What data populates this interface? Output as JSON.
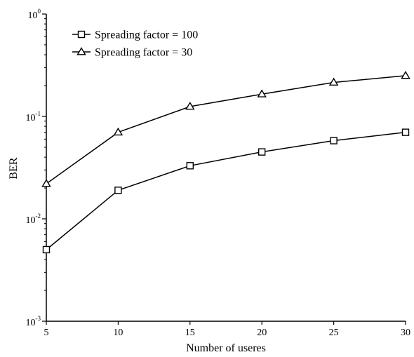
{
  "chart_data": {
    "type": "line",
    "xlabel": "Number of useres",
    "ylabel": "BER",
    "x": [
      5,
      10,
      15,
      20,
      25,
      30
    ],
    "xlim": [
      5,
      30
    ],
    "ylim": [
      0.001,
      1
    ],
    "yscale": "log",
    "grid": false,
    "legend_position": "top-left",
    "x_ticks": [
      "5",
      "10",
      "15",
      "20",
      "25",
      "30"
    ],
    "y_ticks": [
      {
        "base": "10",
        "exp": "0",
        "value": 1
      },
      {
        "base": "10",
        "exp": "-1",
        "value": 0.1
      },
      {
        "base": "10",
        "exp": "-2",
        "value": 0.01
      },
      {
        "base": "10",
        "exp": "-3",
        "value": 0.001
      }
    ],
    "series": [
      {
        "name": "Spreading factor = 100",
        "marker": "square",
        "values": [
          0.005,
          0.019,
          0.033,
          0.045,
          0.058,
          0.07
        ]
      },
      {
        "name": "Spreading factor = 30",
        "marker": "triangle",
        "values": [
          0.022,
          0.07,
          0.125,
          0.165,
          0.215,
          0.25
        ]
      }
    ]
  }
}
